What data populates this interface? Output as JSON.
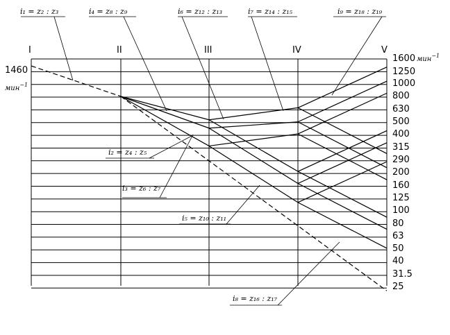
{
  "shafts": [
    "I",
    "II",
    "III",
    "IV",
    "V"
  ],
  "speed_unit": "мин",
  "speed_unit_exp": "−1",
  "input_speed": "1460",
  "speeds": [
    "1600",
    "1250",
    "1000",
    "800",
    "630",
    "500",
    "400",
    "315",
    "290",
    "200",
    "160",
    "125",
    "100",
    "80",
    "63",
    "50",
    "40",
    "31.5",
    "25"
  ],
  "ratios": {
    "i1": "i₁ = z₂ : z₃",
    "i2": "i₂ = z₄ : z₅",
    "i3": "i₃ = z₆ : z₇",
    "i4": "i₄ = z₈ : z₉",
    "i5": "i₅ = z₁₀ : z₁₁",
    "i6": "i₆ = z₁₂ : z₁₃",
    "i7": "i₇ = z₁₄ : z₁₅",
    "i8": "i₈ = z₁₆ : z₁₇",
    "i9": "i₉ = z₁₈ : z₁₉"
  }
}
